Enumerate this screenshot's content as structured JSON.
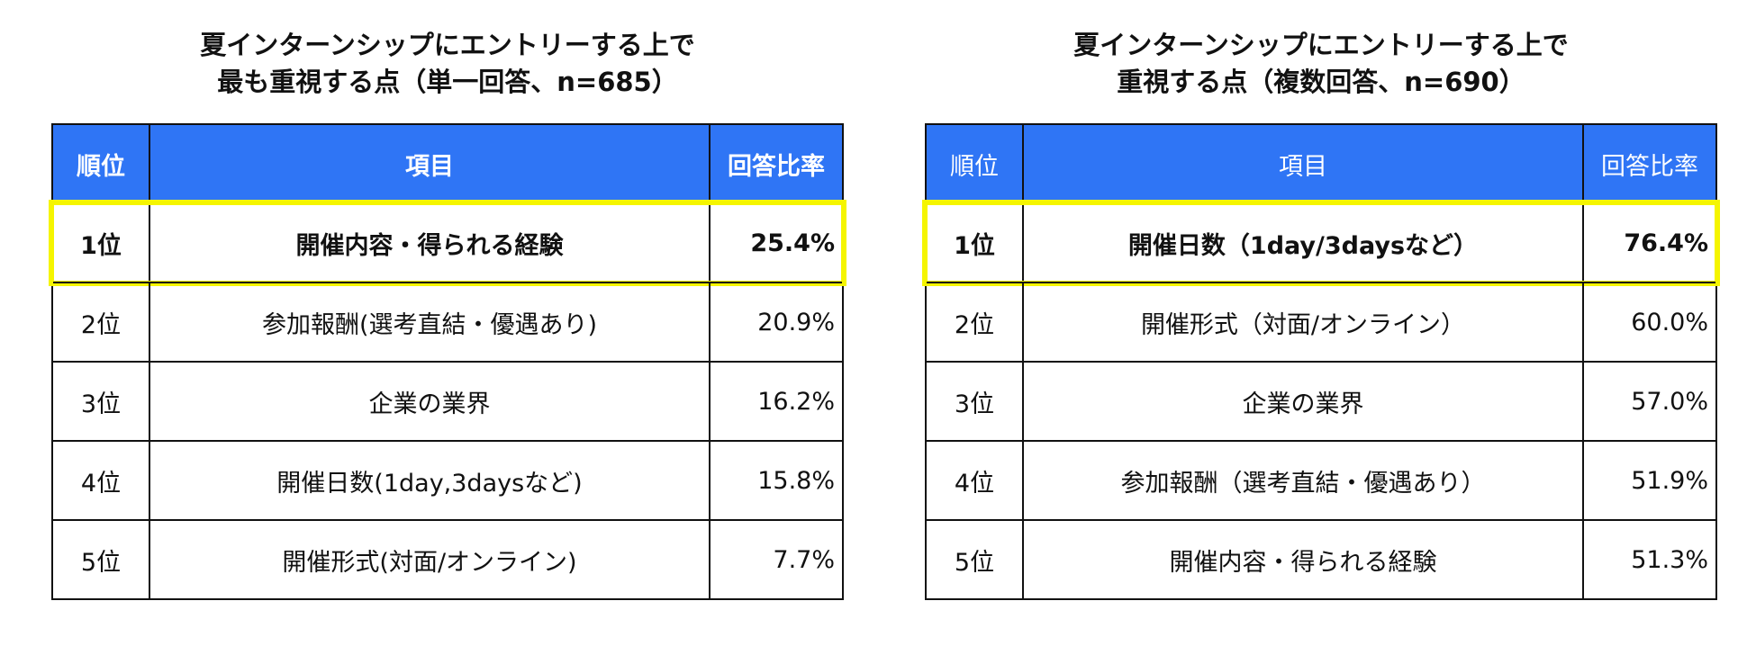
{
  "tables": [
    {
      "title_line1": "夏インターンシップにエントリーする上で",
      "title_line2": "最も重視する点（単一回答、n=685）",
      "headers": {
        "rank": "順位",
        "item": "項目",
        "rate": "回答比率"
      },
      "rows": [
        {
          "rank": "1位",
          "item": "開催内容・得られる経験",
          "rate": "25.4%",
          "highlighted": true
        },
        {
          "rank": "2位",
          "item": "参加報酬(選考直結・優遇あり)",
          "rate": "20.9%"
        },
        {
          "rank": "3位",
          "item": "企業の業界",
          "rate": "16.2%"
        },
        {
          "rank": "4位",
          "item": "開催日数(1day,3daysなど)",
          "rate": "15.8%"
        },
        {
          "rank": "5位",
          "item": "開催形式(対面/オンライン)",
          "rate": "7.7%"
        }
      ]
    },
    {
      "title_line1": "夏インターンシップにエントリーする上で",
      "title_line2": "重視する点（複数回答、n=690）",
      "headers": {
        "rank": "順位",
        "item": "項目",
        "rate": "回答比率"
      },
      "rows": [
        {
          "rank": "1位",
          "item": "開催日数（1day/3daysなど）",
          "rate": "76.4%",
          "highlighted": true
        },
        {
          "rank": "2位",
          "item": "開催形式（対面/オンライン）",
          "rate": "60.0%"
        },
        {
          "rank": "3位",
          "item": "企業の業界",
          "rate": "57.0%"
        },
        {
          "rank": "4位",
          "item": "参加報酬（選考直結・優遇あり）",
          "rate": "51.9%"
        },
        {
          "rank": "5位",
          "item": "開催内容・得られる経験",
          "rate": "51.3%"
        }
      ]
    }
  ],
  "colors": {
    "header_bg": "#2f75f5",
    "header_text": "#ffffff",
    "highlight_border": "#f5f500",
    "grid": "#111111"
  },
  "chart_data": [
    {
      "type": "table",
      "title": "夏インターンシップにエントリーする上で 最も重視する点（単一回答、n=685）",
      "columns": [
        "順位",
        "項目",
        "回答比率"
      ],
      "categories": [
        "開催内容・得られる経験",
        "参加報酬(選考直結・優遇あり)",
        "企業の業界",
        "開催日数(1day,3daysなど)",
        "開催形式(対面/オンライン)"
      ],
      "values": [
        25.4,
        20.9,
        16.2,
        15.8,
        7.7
      ],
      "unit": "%"
    },
    {
      "type": "table",
      "title": "夏インターンシップにエントリーする上で 重視する点（複数回答、n=690）",
      "columns": [
        "順位",
        "項目",
        "回答比率"
      ],
      "categories": [
        "開催日数（1day/3daysなど）",
        "開催形式（対面/オンライン）",
        "企業の業界",
        "参加報酬（選考直結・優遇あり）",
        "開催内容・得られる経験"
      ],
      "values": [
        76.4,
        60.0,
        57.0,
        51.9,
        51.3
      ],
      "unit": "%"
    }
  ]
}
